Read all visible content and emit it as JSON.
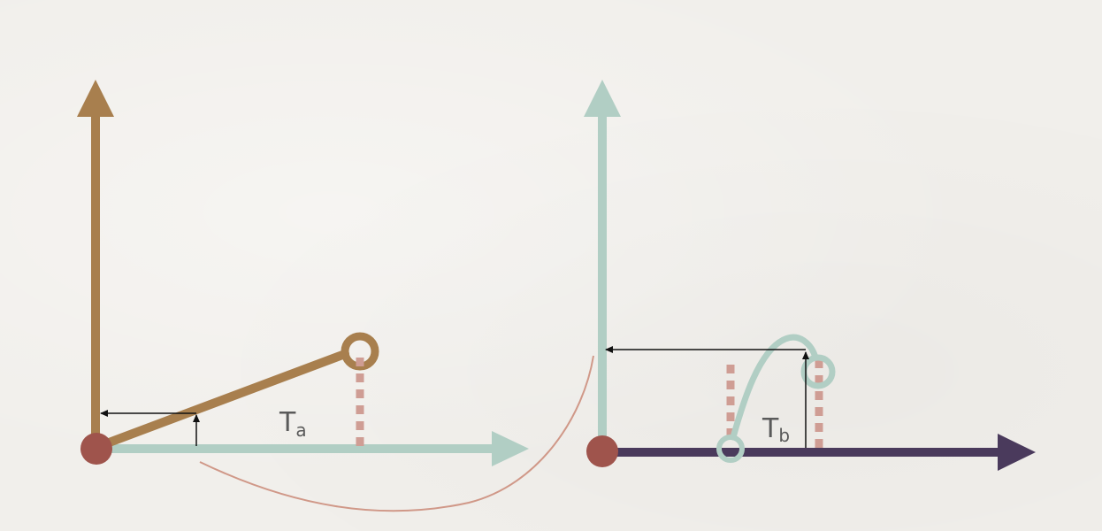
{
  "colors": {
    "background": "#f1efeb",
    "axis_brown": "#a87f4e",
    "axis_mint": "#b1cec4",
    "axis_purple": "#4a3a5c",
    "dot_red": "#9f544c",
    "dash_pink": "#cf9d94",
    "arc_line": "#d09888",
    "arrow_black": "#111111"
  },
  "left_panel": {
    "label_main": "T",
    "label_sub": "a"
  },
  "right_panel": {
    "label_main": "T",
    "label_sub": "b"
  }
}
